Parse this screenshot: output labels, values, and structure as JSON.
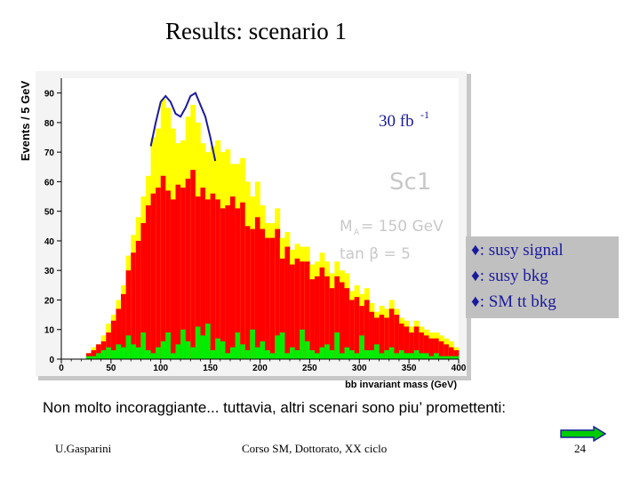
{
  "slide": {
    "title": "Results: scenario 1",
    "caption": "Non molto incoraggiante... tuttavia, altri scenari sono piu’ promettenti:",
    "footer_left": "U.Gasparini",
    "footer_center": "Corso SM, Dottorato, XX ciclo",
    "page_number": "24",
    "next_icon": "right-arrow-icon"
  },
  "legend": {
    "items": [
      {
        "marker": "♦",
        "label": ": susy signal"
      },
      {
        "marker": "♦",
        "label": ": susy bkg"
      },
      {
        "marker": "♦",
        "label": ": SM tt bkg"
      }
    ]
  },
  "annotations": {
    "luminosity": "30 fb",
    "luminosity_sup": "-1",
    "scenario": "Sc1",
    "mA": "M",
    "mA_sub": "A",
    "mA_value": " = 150 GeV",
    "tanb": "tan β = 5"
  },
  "colors": {
    "signal": "#ffff00",
    "susy_bkg": "#ff0000",
    "sm_bkg": "#00ee00",
    "fit": "#1a1a9c",
    "frame_bg": "#ffffff",
    "legend_bg": "#c0c0c0"
  },
  "chart_data": {
    "type": "bar",
    "xlabel": "bb invariant mass (GeV)",
    "ylabel": "Events / 5 GeV",
    "xlim": [
      0,
      400
    ],
    "ylim": [
      0,
      95
    ],
    "xticks": [
      0,
      50,
      100,
      150,
      200,
      250,
      300,
      350,
      400
    ],
    "yticks": [
      0,
      10,
      20,
      30,
      40,
      50,
      60,
      70,
      80,
      90
    ],
    "bin_width": 5,
    "bin_starts": [
      25,
      30,
      35,
      40,
      45,
      50,
      55,
      60,
      65,
      70,
      75,
      80,
      85,
      90,
      95,
      100,
      105,
      110,
      115,
      120,
      125,
      130,
      135,
      140,
      145,
      150,
      155,
      160,
      165,
      170,
      175,
      180,
      185,
      190,
      195,
      200,
      205,
      210,
      215,
      220,
      225,
      230,
      235,
      240,
      245,
      250,
      255,
      260,
      265,
      270,
      275,
      280,
      285,
      290,
      295,
      300,
      305,
      310,
      315,
      320,
      325,
      330,
      335,
      340,
      345,
      350,
      355,
      360,
      365,
      370,
      375,
      380,
      385,
      390,
      395
    ],
    "series": [
      {
        "name": "susy signal",
        "stacked_total": [
          2,
          4,
          5,
          8,
          12,
          15,
          20,
          25,
          35,
          42,
          48,
          55,
          62,
          75,
          78,
          88,
          85,
          78,
          73,
          74,
          82,
          86,
          80,
          73,
          70,
          72,
          74,
          70,
          71,
          66,
          66,
          68,
          60,
          55,
          60,
          52,
          46,
          46,
          51,
          41,
          43,
          37,
          39,
          38,
          38,
          32,
          33,
          36,
          33,
          29,
          33,
          30,
          29,
          23,
          25,
          22,
          24,
          19,
          16,
          18,
          17,
          20,
          17,
          14,
          13,
          11,
          13,
          11,
          10,
          9,
          9,
          8,
          7,
          6,
          4
        ]
      },
      {
        "name": "susy bkg",
        "stacked_total": [
          2,
          3,
          5,
          6,
          9,
          13,
          17,
          22,
          30,
          36,
          40,
          46,
          52,
          56,
          58,
          62,
          57,
          54,
          59,
          58,
          61,
          64,
          55,
          58,
          54,
          56,
          54,
          51,
          52,
          55,
          51,
          53,
          45,
          44,
          48,
          44,
          41,
          41,
          44,
          34,
          38,
          32,
          34,
          33,
          33,
          27,
          28,
          31,
          28,
          24,
          28,
          26,
          24,
          20,
          21,
          18,
          20,
          16,
          14,
          15,
          14,
          17,
          15,
          12,
          11,
          9,
          11,
          9,
          8,
          7,
          7,
          6,
          5,
          4,
          3
        ]
      },
      {
        "name": "SM tt bkg",
        "values": [
          1,
          1,
          2,
          3,
          4,
          3,
          5,
          4,
          8,
          5,
          4,
          9,
          3,
          2,
          4,
          6,
          9,
          2,
          5,
          10,
          6,
          4,
          11,
          8,
          12,
          3,
          7,
          6,
          2,
          4,
          9,
          5,
          3,
          10,
          4,
          6,
          3,
          2,
          8,
          9,
          2,
          4,
          3,
          10,
          6,
          3,
          2,
          4,
          5,
          3,
          9,
          2,
          4,
          3,
          2,
          8,
          3,
          3,
          5,
          2,
          3,
          4,
          2,
          3,
          2,
          2,
          3,
          2,
          2,
          1,
          2,
          1,
          1,
          1,
          1
        ]
      }
    ],
    "fit_curve": {
      "x": [
        90,
        95,
        100,
        105,
        110,
        115,
        120,
        125,
        130,
        135,
        140,
        145,
        150,
        155
      ],
      "y": [
        72,
        80,
        87,
        89,
        87,
        83,
        82,
        85,
        89,
        90,
        86,
        82,
        75,
        67
      ]
    }
  }
}
